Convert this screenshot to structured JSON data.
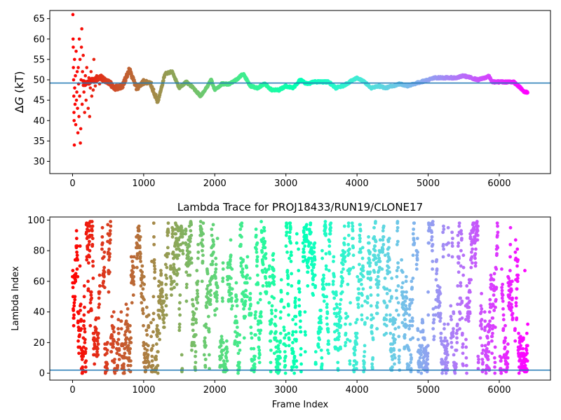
{
  "chart_data": [
    {
      "type": "scatter",
      "title": "",
      "xlabel": "",
      "ylabel": "ΔG (kT)",
      "ylabel_parts": {
        "symbol": "Δ",
        "var": "G",
        "rest": " (kT)"
      },
      "xlim": [
        -320,
        6720
      ],
      "ylim": [
        27,
        67
      ],
      "xticks": [
        0,
        1000,
        2000,
        3000,
        4000,
        5000,
        6000
      ],
      "yticks": [
        30,
        35,
        40,
        45,
        50,
        55,
        60,
        65
      ],
      "hline": 49.2,
      "hline_color": "#1f77b4",
      "colormap": "rainbow (red at frame 0 → violet at last frame)",
      "grid": false,
      "trace": [
        [
          0,
          50
        ],
        [
          100,
          49.5
        ],
        [
          200,
          49
        ],
        [
          300,
          50
        ],
        [
          400,
          50.5
        ],
        [
          500,
          49.5
        ],
        [
          600,
          48
        ],
        [
          700,
          48.5
        ],
        [
          800,
          52.5
        ],
        [
          900,
          48
        ],
        [
          1000,
          49.5
        ],
        [
          1100,
          49
        ],
        [
          1200,
          44.5
        ],
        [
          1300,
          51.5
        ],
        [
          1400,
          52
        ],
        [
          1500,
          48
        ],
        [
          1600,
          49.5
        ],
        [
          1700,
          48
        ],
        [
          1800,
          46
        ],
        [
          1900,
          48.5
        ],
        [
          1950,
          50
        ],
        [
          2000,
          47.5
        ],
        [
          2100,
          49
        ],
        [
          2200,
          49
        ],
        [
          2300,
          50
        ],
        [
          2400,
          51.5
        ],
        [
          2500,
          48.5
        ],
        [
          2600,
          48
        ],
        [
          2700,
          49
        ],
        [
          2800,
          47.5
        ],
        [
          2900,
          47.5
        ],
        [
          3000,
          48.5
        ],
        [
          3100,
          48
        ],
        [
          3200,
          50
        ],
        [
          3300,
          49
        ],
        [
          3400,
          49.5
        ],
        [
          3500,
          49.5
        ],
        [
          3600,
          49.5
        ],
        [
          3700,
          48
        ],
        [
          3800,
          48.5
        ],
        [
          3900,
          49.5
        ],
        [
          4000,
          50.5
        ],
        [
          4100,
          49.5
        ],
        [
          4200,
          48
        ],
        [
          4300,
          48.5
        ],
        [
          4400,
          48
        ],
        [
          4500,
          48.5
        ],
        [
          4600,
          49
        ],
        [
          4700,
          48.5
        ],
        [
          4800,
          49
        ],
        [
          4900,
          49.5
        ],
        [
          5000,
          50
        ],
        [
          5100,
          50.5
        ],
        [
          5200,
          50.5
        ],
        [
          5300,
          50.5
        ],
        [
          5400,
          50.5
        ],
        [
          5500,
          51
        ],
        [
          5600,
          50.5
        ],
        [
          5700,
          50
        ],
        [
          5800,
          50.5
        ],
        [
          5850,
          51
        ],
        [
          5900,
          49.5
        ],
        [
          6000,
          49.5
        ],
        [
          6100,
          49.5
        ],
        [
          6200,
          49.5
        ],
        [
          6300,
          48
        ],
        [
          6350,
          47
        ],
        [
          6400,
          47
        ]
      ],
      "early_scatter": [
        [
          5,
          66
        ],
        [
          8,
          60
        ],
        [
          10,
          58
        ],
        [
          12,
          53
        ],
        [
          15,
          50
        ],
        [
          18,
          46
        ],
        [
          20,
          42
        ],
        [
          22,
          40
        ],
        [
          25,
          34
        ],
        [
          28,
          55
        ],
        [
          30,
          48
        ],
        [
          35,
          44
        ],
        [
          40,
          51
        ],
        [
          45,
          39
        ],
        [
          50,
          57
        ],
        [
          55,
          45
        ],
        [
          60,
          47
        ],
        [
          65,
          52
        ],
        [
          70,
          43
        ],
        [
          75,
          37
        ],
        [
          80,
          53
        ],
        [
          85,
          49
        ],
        [
          90,
          41
        ],
        [
          95,
          60
        ],
        [
          100,
          46
        ],
        [
          105,
          55
        ],
        [
          110,
          34.5
        ],
        [
          115,
          38
        ],
        [
          120,
          50
        ],
        [
          125,
          58
        ],
        [
          130,
          62.5
        ],
        [
          135,
          44
        ],
        [
          140,
          52
        ],
        [
          150,
          56
        ],
        [
          160,
          47
        ],
        [
          170,
          42
        ],
        [
          180,
          51
        ],
        [
          190,
          45
        ],
        [
          200,
          53
        ],
        [
          210,
          49
        ],
        [
          220,
          43
        ],
        [
          230,
          50.5
        ],
        [
          240,
          41
        ],
        [
          250,
          48
        ],
        [
          260,
          52
        ],
        [
          270,
          46
        ],
        [
          280,
          50
        ],
        [
          290,
          47.5
        ],
        [
          300,
          55
        ],
        [
          320,
          48.5
        ],
        [
          340,
          51
        ],
        [
          360,
          50
        ],
        [
          380,
          49
        ],
        [
          400,
          50.5
        ]
      ]
    },
    {
      "type": "scatter",
      "title": "Lambda Trace for PROJ18433/RUN19/CLONE17",
      "xlabel": "Frame Index",
      "ylabel": "Lambda Index",
      "xlim": [
        -320,
        6720
      ],
      "ylim": [
        -4.5,
        102
      ],
      "xticks": [
        0,
        1000,
        2000,
        3000,
        4000,
        5000,
        6000
      ],
      "yticks": [
        0,
        20,
        40,
        60,
        80,
        100
      ],
      "hline": 2,
      "hline_color": "#1f77b4",
      "colormap": "rainbow (red at frame 0 → violet at last frame)",
      "grid": false,
      "frame_range": [
        0,
        6400
      ],
      "lambda_range": [
        0,
        99
      ]
    }
  ]
}
